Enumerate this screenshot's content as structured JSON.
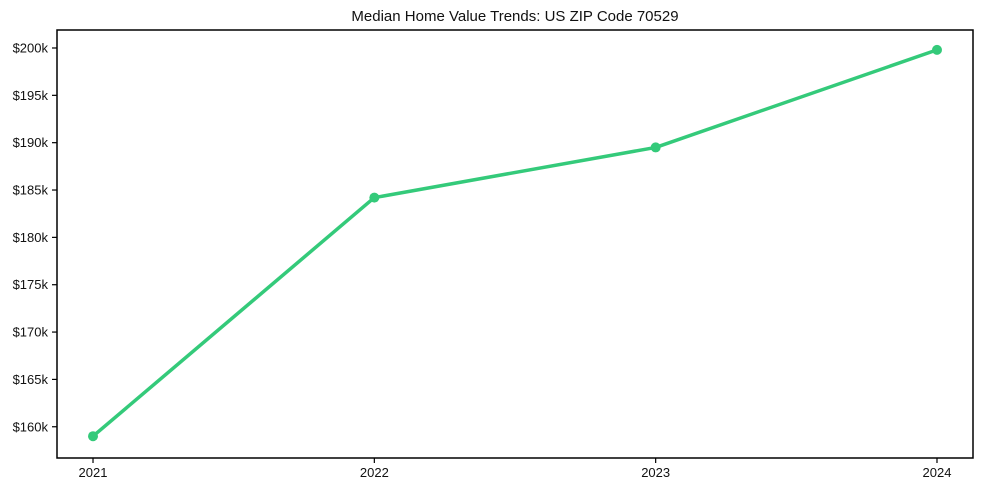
{
  "chart_data": {
    "type": "line",
    "title": "Median Home Value Trends: US ZIP Code 70529",
    "xlabel": "",
    "ylabel": "",
    "x": [
      2021,
      2022,
      2023,
      2024
    ],
    "categories": [
      "2021",
      "2022",
      "2023",
      "2024"
    ],
    "series": [
      {
        "name": "Median Home Value",
        "values": [
          159000,
          184200,
          189500,
          199800
        ]
      }
    ],
    "xlim": [
      2020.872,
      2024.128
    ],
    "ylim": [
      156700,
      201900
    ],
    "yticks": [
      160000,
      165000,
      170000,
      175000,
      180000,
      185000,
      190000,
      195000,
      200000
    ],
    "ytick_labels": [
      "$160k",
      "$165k",
      "$170k",
      "$175k",
      "$180k",
      "$185k",
      "$190k",
      "$195k",
      "$200k"
    ],
    "xticks": [
      2021,
      2022,
      2023,
      2024
    ],
    "xtick_labels": [
      "2021",
      "2022",
      "2023",
      "2024"
    ],
    "grid": false,
    "legend": "none",
    "colors": {
      "line": "#34ca7a",
      "marker": "#34ca7a",
      "spine": "#000000",
      "text": "#111111",
      "background": "#ffffff"
    }
  }
}
